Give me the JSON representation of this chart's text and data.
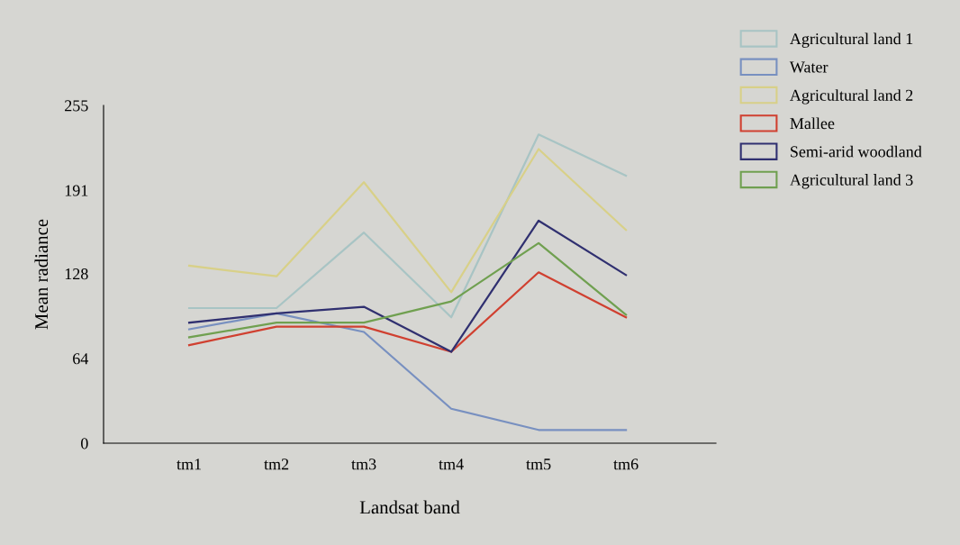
{
  "chart_data": {
    "type": "line",
    "xlabel": "Landsat band",
    "ylabel": "Mean radiance",
    "categories": [
      "tm1",
      "tm2",
      "tm3",
      "tm4",
      "tm5",
      "tm6"
    ],
    "series": [
      {
        "name": "Agricultural land 1",
        "color": "#a8c4c4",
        "values": [
          102,
          102,
          159,
          95,
          233,
          202
        ]
      },
      {
        "name": "Water",
        "color": "#7890c0",
        "values": [
          86,
          98,
          84,
          26,
          10,
          10
        ]
      },
      {
        "name": "Agricultural land 2",
        "color": "#d8d088",
        "values": [
          134,
          126,
          197,
          114,
          222,
          161
        ]
      },
      {
        "name": "Mallee",
        "color": "#d04030",
        "values": [
          74,
          88,
          88,
          69,
          129,
          95
        ]
      },
      {
        "name": "Semi-arid woodland",
        "color": "#303070",
        "values": [
          91,
          98,
          103,
          69,
          168,
          127
        ]
      },
      {
        "name": "Agricultural land 3",
        "color": "#70a050",
        "values": [
          80,
          91,
          91,
          107,
          151,
          97
        ]
      }
    ],
    "ylim": [
      0,
      255
    ],
    "yticks": [
      0,
      64,
      128,
      191,
      255
    ],
    "grid": false,
    "legend": "top right",
    "marker": "none",
    "line_style": "solid"
  }
}
